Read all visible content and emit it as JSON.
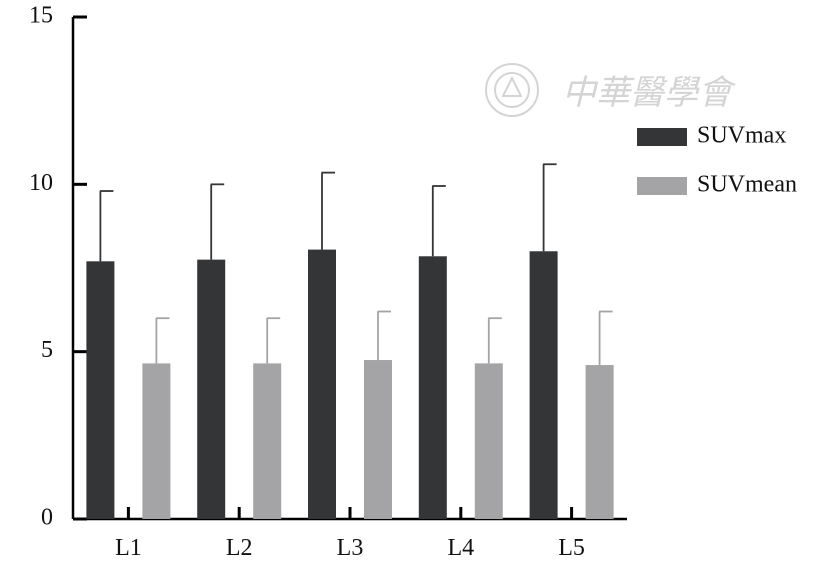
{
  "chart_data": {
    "type": "bar",
    "categories": [
      "L1",
      "L2",
      "L3",
      "L4",
      "L5"
    ],
    "series": [
      {
        "name": "SUVmax",
        "color": "#333536",
        "values": [
          7.7,
          7.75,
          8.05,
          7.85,
          8.0
        ],
        "error": [
          2.1,
          2.25,
          2.3,
          2.1,
          2.6
        ]
      },
      {
        "name": "SUVmean",
        "color": "#a4a4a6",
        "values": [
          4.65,
          4.65,
          4.75,
          4.65,
          4.6
        ],
        "error": [
          1.35,
          1.35,
          1.45,
          1.35,
          1.6
        ]
      }
    ],
    "yticks": [
      0,
      5,
      10,
      15
    ],
    "ylim": [
      0,
      15
    ],
    "legend_position": "right",
    "grid": false
  },
  "watermark": {
    "text": "中華醫學會",
    "icon": "society-seal-icon"
  }
}
